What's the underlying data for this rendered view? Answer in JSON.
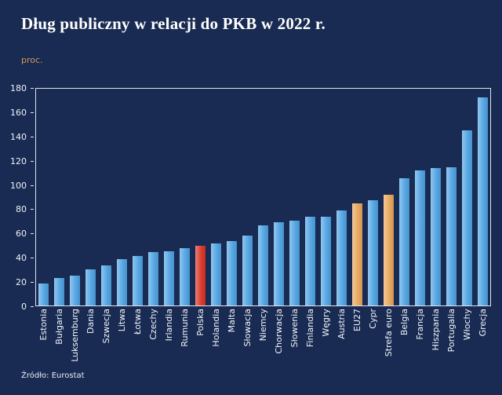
{
  "page": {
    "title": "Dług publiczny w relacji do PKB w 2022 r.",
    "y_unit_label": "proc.",
    "source": "Źródło: Eurostat"
  },
  "colors": {
    "background": "#192b52",
    "bar_default": "#4fa3e3",
    "bar_red": "#d93526",
    "bar_amber": "#e9a65a",
    "axis_line": "#dde5f0",
    "title_text": "#ffffff",
    "tick_text": "#eef2fa",
    "unit_label_text": "#d29a54"
  },
  "chart_data": {
    "type": "bar",
    "title": "Dług publiczny w relacji do PKB w 2022 r.",
    "xlabel": "",
    "ylabel": "proc.",
    "ylim": [
      0,
      180
    ],
    "yticks": [
      0,
      20,
      40,
      60,
      80,
      100,
      120,
      140,
      160,
      180
    ],
    "grid": false,
    "legend": false,
    "categories": [
      "Estonia",
      "Bułgaria",
      "Luksemburg",
      "Dania",
      "Szwecja",
      "Litwa",
      "Łotwa",
      "Czechy",
      "Irlandia",
      "Rumunia",
      "Polska",
      "Holandia",
      "Malta",
      "Słowacja",
      "Niemcy",
      "Chorwacja",
      "Słowenia",
      "Finlandia",
      "Węgry",
      "Austria",
      "EU27",
      "Cypr",
      "Strefa euro",
      "Belgia",
      "Francja",
      "Hiszpania",
      "Portugalia",
      "Włochy",
      "Grecja"
    ],
    "values": [
      18.4,
      22.9,
      24.6,
      30.1,
      33.0,
      38.4,
      40.8,
      44.1,
      44.7,
      47.3,
      49.1,
      51.0,
      53.4,
      57.8,
      66.3,
      68.4,
      69.9,
      73.0,
      73.3,
      78.4,
      84.0,
      86.5,
      91.5,
      105.1,
      111.6,
      113.2,
      113.9,
      144.4,
      171.3
    ],
    "highlighted_bars": {
      "Polska": "red",
      "EU27": "amber",
      "Strefa euro": "amber"
    }
  }
}
